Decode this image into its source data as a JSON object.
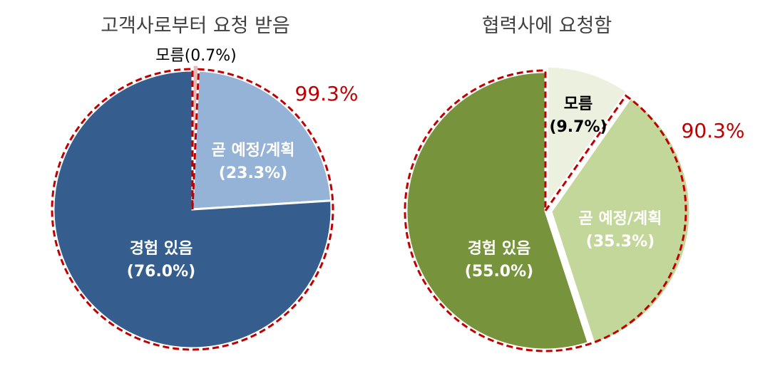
{
  "chart_data": [
    {
      "type": "pie",
      "title": "고객사로부터 요청 받음",
      "slices": [
        {
          "label": "모름",
          "value": 0.7,
          "color": "#e8b8b4",
          "text_color": "#000000",
          "pct_text": "(0.7%)",
          "label_inline": "모름(0.7%)"
        },
        {
          "label": "곧 예정/계획",
          "value": 23.3,
          "color": "#95b3d7",
          "text_color": "#ffffff",
          "pct_text": "(23.3%)"
        },
        {
          "label": "경험 있음",
          "value": 76.0,
          "color": "#355e8f",
          "text_color": "#ffffff",
          "pct_text": "(76.0%)"
        }
      ],
      "annotation": {
        "text": "99.3%",
        "color": "#c00000",
        "covers": [
          "곧 예정/계획",
          "경험 있음"
        ]
      }
    },
    {
      "type": "pie",
      "title": "협력사에 요청함",
      "slices": [
        {
          "label": "모름",
          "value": 9.7,
          "color": "#ebf1de",
          "text_color": "#000000",
          "pct_text": "(9.7%)"
        },
        {
          "label": "곧 예정/계획",
          "value": 35.3,
          "color": "#c4d79b",
          "text_color": "#ffffff",
          "pct_text": "(35.3%)"
        },
        {
          "label": "경험 있음",
          "value": 55.0,
          "color": "#77933c",
          "text_color": "#ffffff",
          "pct_text": "(55.0%)"
        }
      ],
      "annotation": {
        "text": "90.3%",
        "color": "#c00000",
        "covers": [
          "곧 예정/계획",
          "경험 있음"
        ]
      }
    }
  ]
}
